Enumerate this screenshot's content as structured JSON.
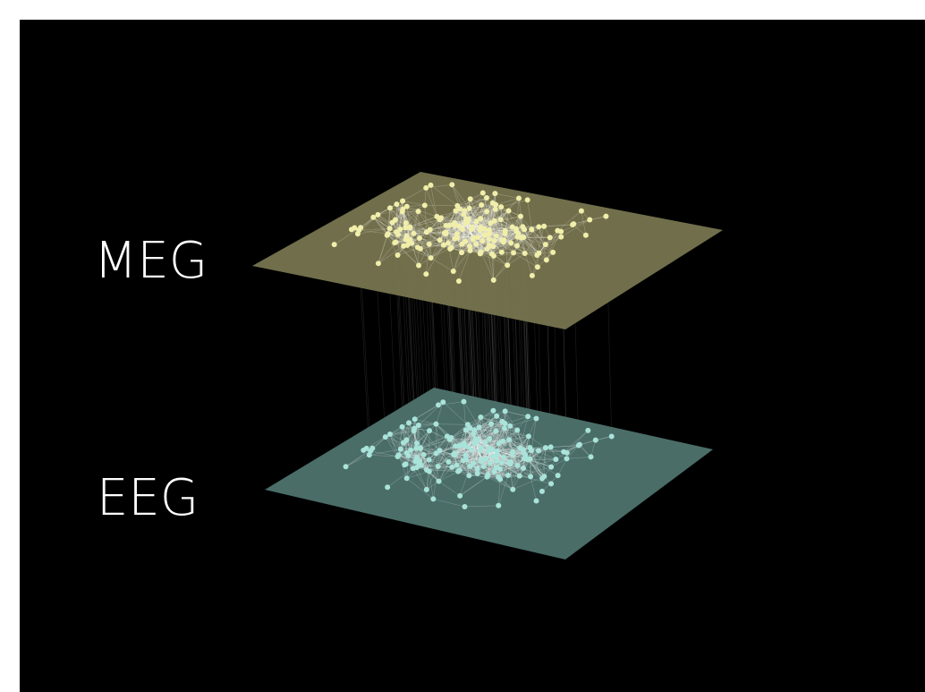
{
  "layers": [
    {
      "label": "MEG"
    },
    {
      "label": "EEG"
    }
  ]
}
